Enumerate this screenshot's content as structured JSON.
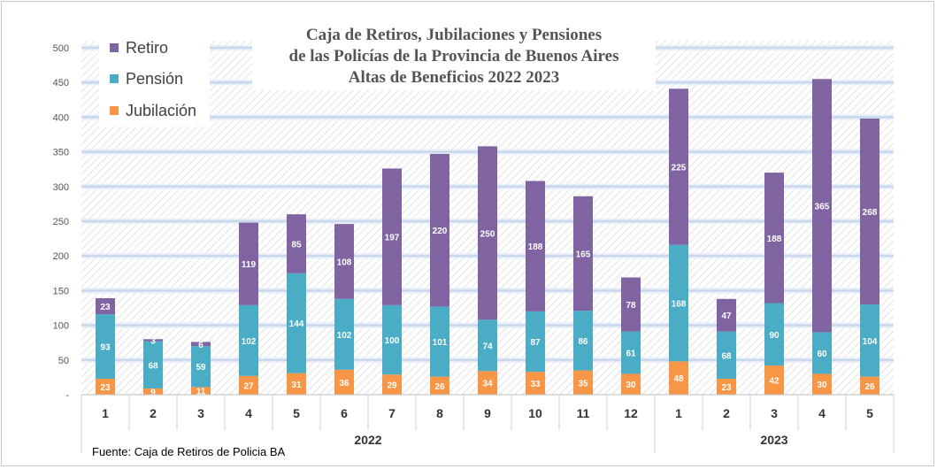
{
  "title_lines": [
    "Caja de Retiros, Jubilaciones y Pensiones",
    "de las Policías de la Provincia de Buenos Aires",
    "Altas de Beneficios 2022  2023"
  ],
  "source": "Fuente: Caja de Retiros de Policia BA",
  "colors": {
    "retiro": "#8064a2",
    "pension": "#4bacc6",
    "jubilacion": "#f79646",
    "band": "#dce6f2",
    "band_edge": "#b9cbe6"
  },
  "chart_data": {
    "type": "bar",
    "stacked": true,
    "categories": [
      "1",
      "2",
      "3",
      "4",
      "5",
      "6",
      "7",
      "8",
      "9",
      "10",
      "11",
      "12",
      "1",
      "2",
      "3",
      "4",
      "5"
    ],
    "groups": [
      {
        "label": "2022",
        "count": 12
      },
      {
        "label": "2023",
        "count": 5
      }
    ],
    "series": [
      {
        "name": "Jubilación",
        "values": [
          23,
          9,
          11,
          27,
          31,
          36,
          29,
          26,
          34,
          33,
          35,
          30,
          48,
          23,
          42,
          30,
          26
        ]
      },
      {
        "name": "Pensión",
        "values": [
          93,
          68,
          59,
          102,
          144,
          102,
          100,
          101,
          74,
          87,
          86,
          61,
          168,
          68,
          90,
          60,
          104
        ]
      },
      {
        "name": "Retiro",
        "values": [
          23,
          3,
          6,
          119,
          85,
          108,
          197,
          220,
          250,
          188,
          165,
          78,
          225,
          47,
          188,
          365,
          268
        ]
      }
    ],
    "ylim": [
      0,
      500
    ],
    "yticks": [
      "-",
      "50",
      "100",
      "150",
      "200",
      "250",
      "300",
      "350",
      "400",
      "450",
      "500"
    ],
    "grid": true,
    "legend": "top-left"
  }
}
